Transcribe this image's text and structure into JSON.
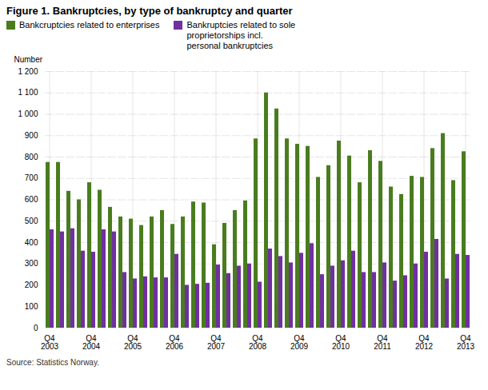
{
  "chart_data": {
    "type": "bar",
    "title": "Figure 1. Bankruptcies, by type of bankruptcy and quarter",
    "ylabel": "Number",
    "source": "Source: Statistics Norway.",
    "categories": [
      "Q4\n2003",
      null,
      null,
      null,
      "Q4\n2004",
      null,
      null,
      null,
      "Q4\n2005",
      null,
      null,
      null,
      "Q4\n2006",
      null,
      null,
      null,
      "Q4\n2007",
      null,
      null,
      null,
      "Q4\n2008",
      null,
      null,
      null,
      "Q4\n2009",
      null,
      null,
      null,
      "Q4\n2010",
      null,
      null,
      null,
      "Q4\n2011",
      null,
      null,
      null,
      "Q4\n2012",
      null,
      null,
      null,
      "Q4\n2013"
    ],
    "series": [
      {
        "name": "Bankcruptcies related to enterprises",
        "color": "#4a7c1f",
        "values": [
          775,
          775,
          640,
          600,
          680,
          645,
          565,
          520,
          510,
          480,
          520,
          550,
          485,
          520,
          590,
          585,
          390,
          490,
          550,
          595,
          885,
          1100,
          1025,
          885,
          860,
          850,
          705,
          760,
          875,
          805,
          680,
          830,
          780,
          660,
          625,
          710,
          705,
          840,
          910,
          690,
          825
        ]
      },
      {
        "name": "Bankruptcies related to sole\nproprietorships incl.\npersonal bankruptcies",
        "color": "#7030a0",
        "values": [
          460,
          450,
          465,
          360,
          355,
          460,
          450,
          260,
          230,
          240,
          235,
          235,
          345,
          200,
          205,
          210,
          295,
          255,
          290,
          300,
          215,
          370,
          335,
          305,
          350,
          395,
          250,
          290,
          315,
          360,
          260,
          260,
          305,
          220,
          245,
          300,
          355,
          415,
          230,
          345,
          340
        ]
      }
    ],
    "ylim": [
      0,
      1200
    ],
    "yticks": [
      0,
      100,
      200,
      300,
      400,
      500,
      600,
      700,
      800,
      900,
      {
        "value": 1000,
        "label": "1 000"
      },
      {
        "value": 1100,
        "label": "1 100"
      },
      {
        "value": 1200,
        "label": "1 200"
      }
    ],
    "grid": true,
    "legend": "upper left"
  }
}
